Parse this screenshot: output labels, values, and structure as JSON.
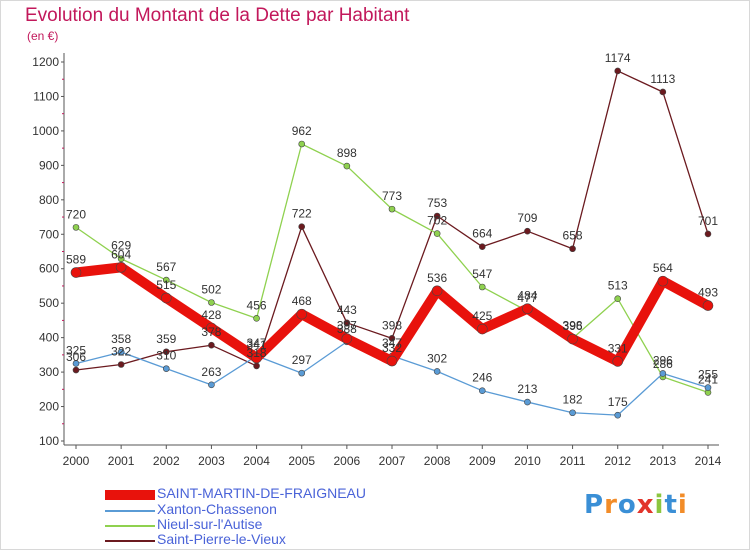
{
  "chart_data": {
    "type": "line",
    "title": "Evolution du Montant de la Dette par Habitant",
    "subtitle": "(en €)",
    "x": [
      2000,
      2001,
      2002,
      2003,
      2004,
      2005,
      2006,
      2007,
      2008,
      2009,
      2010,
      2011,
      2012,
      2013,
      2014
    ],
    "ylim": [
      100,
      1200
    ],
    "yticks": [
      100,
      200,
      300,
      400,
      500,
      600,
      700,
      800,
      900,
      1000,
      1100,
      1200
    ],
    "grid": false,
    "legend_position": "bottom-left",
    "series": [
      {
        "name": "Saint-Pierre-le-Vieux",
        "color": "#6b1a1f",
        "values": [
          306,
          322,
          359,
          378,
          318,
          722,
          443,
          398,
          753,
          664,
          709,
          658,
          1174,
          1113,
          701
        ]
      },
      {
        "name": "Nieul-sur-l'Autise",
        "color": "#8fd14f",
        "values": [
          720,
          629,
          567,
          502,
          456,
          962,
          898,
          773,
          702,
          547,
          477,
          398,
          513,
          286,
          241
        ]
      },
      {
        "name": "Xanton-Chassenon",
        "color": "#5a9bd5",
        "values": [
          325,
          358,
          310,
          263,
          347,
          297,
          388,
          347,
          302,
          246,
          213,
          182,
          175,
          296,
          255
        ]
      },
      {
        "name": "SAINT-MARTIN-DE-FRAIGNEAU",
        "color": "#e8120c",
        "values": [
          589,
          604,
          515,
          428,
          341,
          468,
          397,
          332,
          536,
          425,
          484,
          396,
          331,
          564,
          493
        ]
      }
    ]
  },
  "legend": {
    "items": [
      {
        "label": "SAINT-MARTIN-DE-FRAIGNEAU",
        "color": "#e8120c"
      },
      {
        "label": "Xanton-Chassenon",
        "color": "#5a9bd5"
      },
      {
        "label": "Nieul-sur-l'Autise",
        "color": "#8fd14f"
      },
      {
        "label": "Saint-Pierre-le-Vieux",
        "color": "#6b1a1f"
      }
    ]
  },
  "logo": {
    "text": "Proxiti",
    "letters": [
      {
        "ch": "P",
        "color": "#3a8fd6"
      },
      {
        "ch": "r",
        "color": "#f28c28"
      },
      {
        "ch": "o",
        "color": "#3a8fd6"
      },
      {
        "ch": "x",
        "color": "#e2352b"
      },
      {
        "ch": "i",
        "color": "#8cc63f"
      },
      {
        "ch": "t",
        "color": "#3a8fd6"
      },
      {
        "ch": "i",
        "color": "#f28c28"
      }
    ]
  }
}
